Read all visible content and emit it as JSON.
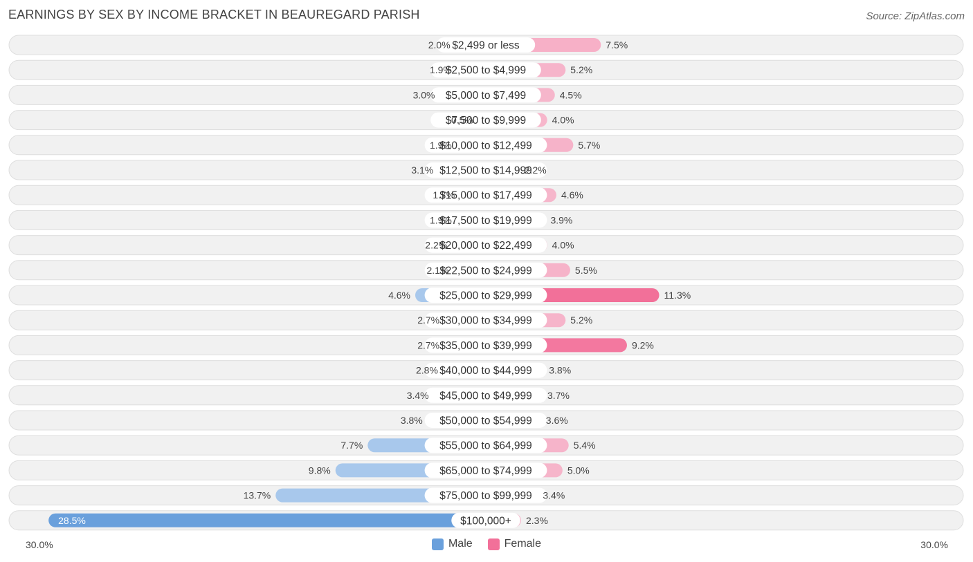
{
  "header": {
    "title": "EARNINGS BY SEX BY INCOME BRACKET IN BEAUREGARD PARISH",
    "source": "Source: ZipAtlas.com"
  },
  "axis": {
    "left_label": "30.0%",
    "right_label": "30.0%"
  },
  "legend": {
    "male_label": "Male",
    "female_label": "Female"
  },
  "colors": {
    "male": "#a8c8ec",
    "male_strong": "#6aa0dc",
    "female_light": "#f7a8c2",
    "female_strong": "#f27099",
    "row_bg": "#f1f1f1",
    "row_border": "#dedede"
  },
  "chart_data": {
    "type": "bar",
    "orientation": "horizontal-diverging",
    "title": "EARNINGS BY SEX BY INCOME BRACKET IN BEAUREGARD PARISH",
    "xlim": [
      -30,
      30
    ],
    "unit": "%",
    "categories": [
      "$2,499 or less",
      "$2,500 to $4,999",
      "$5,000 to $7,499",
      "$7,500 to $9,999",
      "$10,000 to $12,499",
      "$12,500 to $14,999",
      "$15,000 to $17,499",
      "$17,500 to $19,999",
      "$20,000 to $22,499",
      "$22,500 to $24,999",
      "$25,000 to $29,999",
      "$30,000 to $34,999",
      "$35,000 to $39,999",
      "$40,000 to $44,999",
      "$45,000 to $49,999",
      "$50,000 to $54,999",
      "$55,000 to $64,999",
      "$65,000 to $74,999",
      "$75,000 to $99,999",
      "$100,000+"
    ],
    "series": [
      {
        "name": "Male",
        "values": [
          2.0,
          1.9,
          3.0,
          0.5,
          1.9,
          3.1,
          1.7,
          1.9,
          2.2,
          2.1,
          4.6,
          2.7,
          2.7,
          2.8,
          3.4,
          3.8,
          7.7,
          9.8,
          13.7,
          28.5
        ],
        "labels": [
          "2.0%",
          "1.9%",
          "3.0%",
          "0.5%",
          "1.9%",
          "3.1%",
          "1.7%",
          "1.9%",
          "2.2%",
          "2.1%",
          "4.6%",
          "2.7%",
          "2.7%",
          "2.8%",
          "3.4%",
          "3.8%",
          "7.7%",
          "9.8%",
          "13.7%",
          "28.5%"
        ]
      },
      {
        "name": "Female",
        "values": [
          7.5,
          5.2,
          4.5,
          4.0,
          5.7,
          2.2,
          4.6,
          3.9,
          4.0,
          5.5,
          11.3,
          5.2,
          9.2,
          3.8,
          3.7,
          3.6,
          5.4,
          5.0,
          3.4,
          2.3
        ],
        "labels": [
          "7.5%",
          "5.2%",
          "4.5%",
          "4.0%",
          "5.7%",
          "2.2%",
          "4.6%",
          "3.9%",
          "4.0%",
          "5.5%",
          "11.3%",
          "5.2%",
          "9.2%",
          "3.8%",
          "3.7%",
          "3.6%",
          "5.4%",
          "5.0%",
          "3.4%",
          "2.3%"
        ]
      }
    ]
  }
}
